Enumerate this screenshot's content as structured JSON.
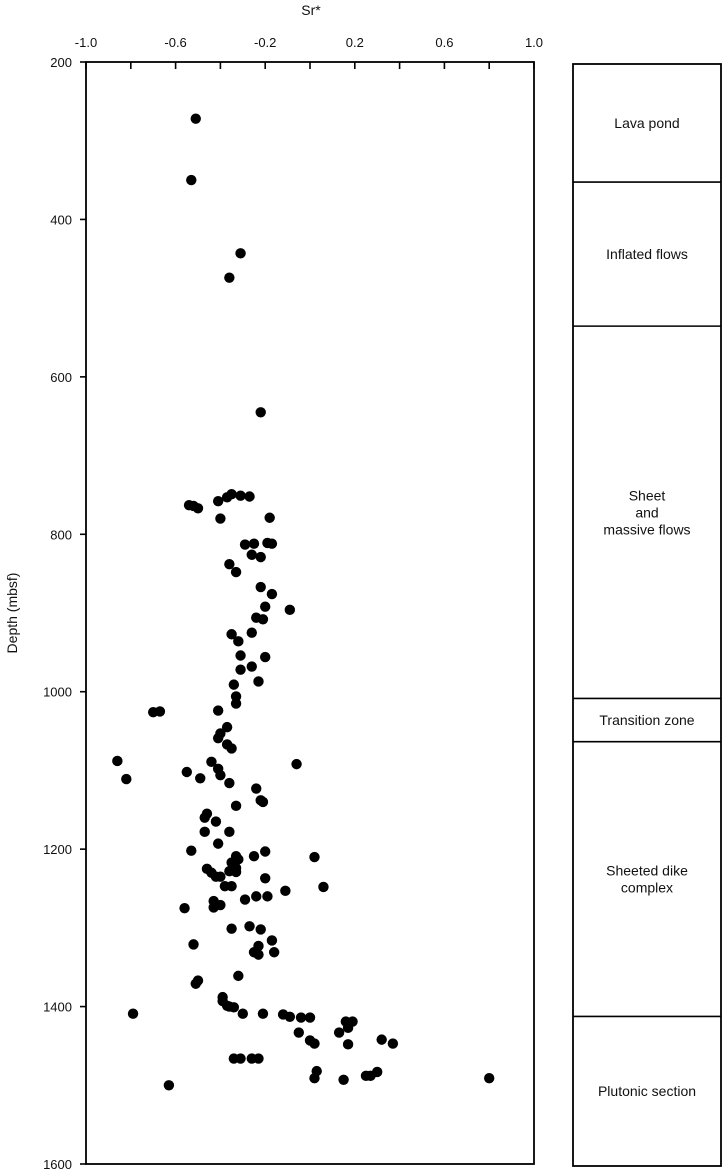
{
  "chart_data": {
    "type": "scatter",
    "title": "",
    "xlabel": "Sr*",
    "ylabel": "Depth (mbsf)",
    "xlim": [
      -1.0,
      1.0
    ],
    "ylim": [
      200,
      1600
    ],
    "y_inverted": true,
    "x_ticks": [
      -1.0,
      -0.6,
      -0.2,
      0.2,
      0.6,
      1.0
    ],
    "x_tick_labels": [
      "-1.0",
      "-0.6",
      "-0.2",
      "0.2",
      "0.6",
      "1.0"
    ],
    "x_axis_position": "top",
    "y_ticks": [
      200,
      400,
      600,
      800,
      1000,
      1200,
      1400,
      1600
    ],
    "y_tick_labels": [
      "200",
      "400",
      "600",
      "800",
      "1000",
      "1200",
      "1400",
      "1600"
    ],
    "grid": false,
    "marker_color": "#000000",
    "points": [
      [
        -0.51,
        272
      ],
      [
        -0.53,
        350
      ],
      [
        -0.31,
        443
      ],
      [
        -0.36,
        474
      ],
      [
        -0.22,
        645
      ],
      [
        -0.35,
        749
      ],
      [
        -0.31,
        751
      ],
      [
        -0.27,
        752
      ],
      [
        -0.37,
        753
      ],
      [
        -0.41,
        758
      ],
      [
        -0.54,
        763
      ],
      [
        -0.52,
        764
      ],
      [
        -0.5,
        767
      ],
      [
        -0.18,
        779
      ],
      [
        -0.4,
        780
      ],
      [
        -0.29,
        813
      ],
      [
        -0.25,
        812
      ],
      [
        -0.19,
        811
      ],
      [
        -0.17,
        812
      ],
      [
        -0.26,
        826
      ],
      [
        -0.22,
        829
      ],
      [
        -0.36,
        838
      ],
      [
        -0.33,
        848
      ],
      [
        -0.22,
        867
      ],
      [
        -0.17,
        876
      ],
      [
        -0.2,
        892
      ],
      [
        -0.09,
        896
      ],
      [
        -0.24,
        906
      ],
      [
        -0.21,
        908
      ],
      [
        -0.26,
        925
      ],
      [
        -0.35,
        927
      ],
      [
        -0.32,
        936
      ],
      [
        -0.31,
        954
      ],
      [
        -0.2,
        956
      ],
      [
        -0.26,
        968
      ],
      [
        -0.31,
        972
      ],
      [
        -0.23,
        987
      ],
      [
        -0.34,
        991
      ],
      [
        -0.33,
        1006
      ],
      [
        -0.33,
        1015
      ],
      [
        -0.41,
        1024
      ],
      [
        -0.67,
        1025
      ],
      [
        -0.7,
        1026
      ],
      [
        -0.37,
        1045
      ],
      [
        -0.4,
        1053
      ],
      [
        -0.41,
        1059
      ],
      [
        -0.37,
        1067
      ],
      [
        -0.35,
        1072
      ],
      [
        -0.86,
        1088
      ],
      [
        -0.44,
        1089
      ],
      [
        -0.06,
        1092
      ],
      [
        -0.41,
        1098
      ],
      [
        -0.55,
        1102
      ],
      [
        -0.4,
        1106
      ],
      [
        -0.49,
        1110
      ],
      [
        -0.82,
        1111
      ],
      [
        -0.36,
        1116
      ],
      [
        -0.24,
        1123
      ],
      [
        -0.22,
        1138
      ],
      [
        -0.21,
        1140
      ],
      [
        -0.33,
        1145
      ],
      [
        -0.46,
        1155
      ],
      [
        -0.47,
        1160
      ],
      [
        -0.42,
        1165
      ],
      [
        -0.36,
        1178
      ],
      [
        -0.47,
        1178
      ],
      [
        -0.41,
        1193
      ],
      [
        -0.53,
        1202
      ],
      [
        -0.2,
        1203
      ],
      [
        -0.33,
        1209
      ],
      [
        -0.25,
        1209
      ],
      [
        0.02,
        1210
      ],
      [
        -0.32,
        1213
      ],
      [
        -0.35,
        1217
      ],
      [
        -0.33,
        1224
      ],
      [
        -0.46,
        1225
      ],
      [
        -0.36,
        1228
      ],
      [
        -0.33,
        1229
      ],
      [
        -0.44,
        1230
      ],
      [
        -0.42,
        1235
      ],
      [
        -0.4,
        1235
      ],
      [
        -0.2,
        1237
      ],
      [
        -0.38,
        1247
      ],
      [
        -0.35,
        1247
      ],
      [
        0.06,
        1248
      ],
      [
        -0.11,
        1253
      ],
      [
        -0.24,
        1260
      ],
      [
        -0.19,
        1260
      ],
      [
        -0.29,
        1264
      ],
      [
        -0.43,
        1266
      ],
      [
        -0.4,
        1271
      ],
      [
        -0.43,
        1274
      ],
      [
        -0.56,
        1275
      ],
      [
        -0.27,
        1298
      ],
      [
        -0.35,
        1301
      ],
      [
        -0.22,
        1302
      ],
      [
        -0.17,
        1316
      ],
      [
        -0.52,
        1321
      ],
      [
        -0.23,
        1323
      ],
      [
        -0.16,
        1331
      ],
      [
        -0.25,
        1331
      ],
      [
        -0.23,
        1334
      ],
      [
        -0.32,
        1361
      ],
      [
        -0.5,
        1367
      ],
      [
        -0.51,
        1371
      ],
      [
        -0.39,
        1388
      ],
      [
        -0.39,
        1393
      ],
      [
        -0.37,
        1399
      ],
      [
        -0.36,
        1400
      ],
      [
        -0.34,
        1401
      ],
      [
        -0.79,
        1409
      ],
      [
        -0.3,
        1409
      ],
      [
        -0.21,
        1409
      ],
      [
        -0.12,
        1410
      ],
      [
        -0.09,
        1413
      ],
      [
        -0.04,
        1414
      ],
      [
        0.0,
        1414
      ],
      [
        0.16,
        1419
      ],
      [
        0.19,
        1419
      ],
      [
        0.17,
        1427
      ],
      [
        -0.05,
        1433
      ],
      [
        0.13,
        1433
      ],
      [
        0.32,
        1442
      ],
      [
        0.0,
        1443
      ],
      [
        0.02,
        1447
      ],
      [
        0.37,
        1447
      ],
      [
        0.17,
        1448
      ],
      [
        -0.34,
        1466
      ],
      [
        -0.31,
        1466
      ],
      [
        -0.26,
        1466
      ],
      [
        -0.23,
        1466
      ],
      [
        0.03,
        1482
      ],
      [
        0.3,
        1483
      ],
      [
        0.27,
        1488
      ],
      [
        0.25,
        1488
      ],
      [
        0.02,
        1491
      ],
      [
        0.15,
        1493
      ],
      [
        0.8,
        1491
      ],
      [
        -0.63,
        1500
      ]
    ]
  },
  "units": [
    {
      "label_lines": [
        "Lava pond"
      ],
      "top": 200,
      "bottom": 350
    },
    {
      "label_lines": [
        "Inflated flows"
      ],
      "top": 350,
      "bottom": 533
    },
    {
      "label_lines": [
        "Sheet",
        "and",
        "massive flows"
      ],
      "top": 533,
      "bottom": 1006
    },
    {
      "label_lines": [
        "Transition zone"
      ],
      "top": 1006,
      "bottom": 1061
    },
    {
      "label_lines": [
        "Sheeted dike",
        "complex"
      ],
      "top": 1061,
      "bottom": 1410
    },
    {
      "label_lines": [
        "Plutonic section"
      ],
      "top": 1410,
      "bottom": 1600
    }
  ]
}
